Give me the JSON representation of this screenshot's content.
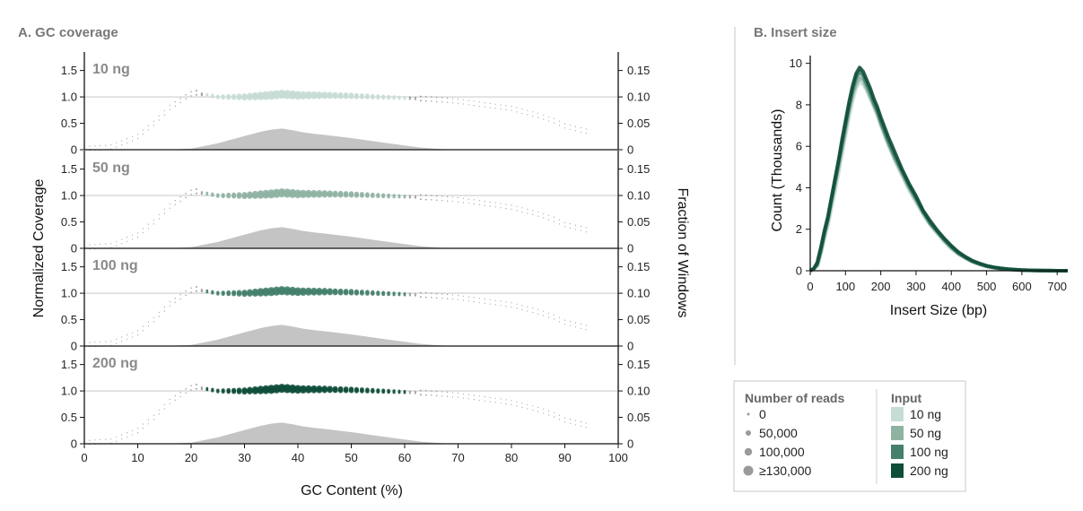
{
  "colors": {
    "input_10": "#c6ddd4",
    "input_50": "#8fb3a3",
    "input_100": "#44806c",
    "input_200": "#0e4d3a",
    "density": "#c4c4c4",
    "refline": "#cccccc",
    "point_grey": "#9a9a9a"
  },
  "chart_data": [
    {
      "id": "A",
      "type": "scatter",
      "title": "A. GC coverage",
      "xlabel": "GC Content (%)",
      "ylabel_left": "Normalized Coverage",
      "ylabel_right": "Fraction of Windows",
      "xlim": [
        0,
        100
      ],
      "ylim_left": [
        0,
        1.85
      ],
      "ylim_right": [
        0,
        0.185
      ],
      "x_ticks": [
        "0",
        "10",
        "20",
        "30",
        "40",
        "50",
        "60",
        "70",
        "80",
        "90",
        "100"
      ],
      "y_ticks_left": [
        "0",
        "0.5",
        "1.0",
        "1.5"
      ],
      "y_ticks_right": [
        "0",
        "0.05",
        "0.10",
        "0.15"
      ],
      "gc_density": {
        "x": [
          0,
          10,
          15,
          20,
          25,
          30,
          33,
          35,
          37,
          39,
          41,
          43,
          45,
          50,
          55,
          60,
          63,
          67,
          70,
          75,
          80,
          90,
          100
        ],
        "y": [
          0,
          0,
          0,
          0.002,
          0.012,
          0.026,
          0.034,
          0.038,
          0.04,
          0.037,
          0.033,
          0.03,
          0.028,
          0.022,
          0.015,
          0.008,
          0.004,
          0.001,
          0,
          0,
          0,
          0,
          0
        ]
      },
      "coverage_curve": {
        "x": [
          0,
          5,
          10,
          13,
          16,
          19,
          20,
          21,
          22,
          25,
          30,
          35,
          37,
          40,
          45,
          50,
          55,
          60,
          65,
          70,
          75,
          80,
          85,
          88,
          90,
          92,
          94
        ],
        "y": [
          0.02,
          0.05,
          0.25,
          0.5,
          0.8,
          1.0,
          1.06,
          1.08,
          1.05,
          1.0,
          1.0,
          1.03,
          1.05,
          1.03,
          1.03,
          1.02,
          1.0,
          0.98,
          0.96,
          0.92,
          0.85,
          0.78,
          0.65,
          0.55,
          0.45,
          0.4,
          0.35
        ]
      },
      "panels": [
        {
          "label": "10 ng",
          "color_key": "input_10"
        },
        {
          "label": "50 ng",
          "color_key": "input_50"
        },
        {
          "label": "100 ng",
          "color_key": "input_100"
        },
        {
          "label": "200 ng",
          "color_key": "input_200"
        }
      ]
    },
    {
      "id": "B",
      "type": "line",
      "title": "B. Insert size",
      "xlabel": "Insert Size (bp)",
      "ylabel": "Count (Thousands)",
      "xlim": [
        0,
        730
      ],
      "ylim": [
        0,
        10.2
      ],
      "x_ticks": [
        "0",
        "100",
        "200",
        "300",
        "400",
        "500",
        "600",
        "700"
      ],
      "y_ticks": [
        "0",
        "2",
        "4",
        "6",
        "8",
        "10"
      ],
      "x": [
        0,
        10,
        20,
        30,
        40,
        50,
        60,
        70,
        80,
        90,
        100,
        110,
        120,
        130,
        140,
        150,
        160,
        170,
        180,
        190,
        200,
        220,
        240,
        260,
        280,
        300,
        320,
        340,
        360,
        380,
        400,
        420,
        440,
        460,
        480,
        500,
        520,
        540,
        560,
        580,
        600,
        620,
        650,
        680,
        700,
        730
      ],
      "series": [
        {
          "name": "10 ng",
          "color_key": "input_10",
          "values": [
            0,
            0.1,
            0.2,
            0.8,
            1.5,
            2.2,
            3.0,
            3.8,
            4.7,
            5.6,
            6.5,
            7.4,
            8.2,
            8.8,
            9.1,
            9.0,
            8.7,
            8.3,
            7.9,
            7.5,
            7.0,
            6.1,
            5.3,
            4.6,
            3.9,
            3.3,
            2.7,
            2.2,
            1.8,
            1.4,
            1.05,
            0.8,
            0.6,
            0.42,
            0.3,
            0.2,
            0.14,
            0.09,
            0.06,
            0.04,
            0.03,
            0.02,
            0.01,
            0.005,
            0,
            0
          ]
        },
        {
          "name": "50 ng",
          "color_key": "input_50",
          "values": [
            0,
            0.1,
            0.3,
            0.9,
            1.7,
            2.4,
            3.3,
            4.1,
            5.0,
            5.9,
            6.8,
            7.7,
            8.5,
            9.0,
            9.3,
            9.2,
            8.8,
            8.4,
            8.0,
            7.6,
            7.1,
            6.2,
            5.4,
            4.7,
            4.0,
            3.4,
            2.8,
            2.25,
            1.85,
            1.45,
            1.1,
            0.82,
            0.62,
            0.44,
            0.31,
            0.21,
            0.15,
            0.1,
            0.065,
            0.045,
            0.03,
            0.02,
            0.01,
            0.005,
            0,
            0
          ]
        },
        {
          "name": "100 ng",
          "color_key": "input_100",
          "values": [
            0,
            0.1,
            0.3,
            1.0,
            1.8,
            2.5,
            3.4,
            4.3,
            5.2,
            6.1,
            7.0,
            7.9,
            8.7,
            9.3,
            9.6,
            9.4,
            9.0,
            8.6,
            8.1,
            7.7,
            7.2,
            6.3,
            5.5,
            4.8,
            4.1,
            3.5,
            2.85,
            2.3,
            1.9,
            1.5,
            1.15,
            0.85,
            0.64,
            0.46,
            0.33,
            0.22,
            0.16,
            0.11,
            0.07,
            0.05,
            0.03,
            0.02,
            0.01,
            0.005,
            0,
            0
          ]
        },
        {
          "name": "200 ng",
          "color_key": "input_200",
          "values": [
            0,
            0.1,
            0.4,
            1.1,
            1.9,
            2.6,
            3.5,
            4.4,
            5.3,
            6.3,
            7.2,
            8.1,
            8.9,
            9.5,
            9.8,
            9.6,
            9.2,
            8.8,
            8.3,
            7.9,
            7.4,
            6.5,
            5.7,
            4.9,
            4.2,
            3.6,
            2.9,
            2.4,
            1.95,
            1.55,
            1.2,
            0.9,
            0.67,
            0.48,
            0.35,
            0.24,
            0.17,
            0.12,
            0.08,
            0.055,
            0.035,
            0.02,
            0.01,
            0.005,
            0,
            0
          ]
        }
      ]
    }
  ],
  "legend": {
    "reads_title": "Number of reads",
    "reads_items": [
      "0",
      "50,000",
      "100,000",
      "≥130,000"
    ],
    "input_title": "Input",
    "input_items": [
      {
        "label": "10 ng",
        "color_key": "input_10"
      },
      {
        "label": "50 ng",
        "color_key": "input_50"
      },
      {
        "label": "100 ng",
        "color_key": "input_100"
      },
      {
        "label": "200 ng",
        "color_key": "input_200"
      }
    ]
  }
}
